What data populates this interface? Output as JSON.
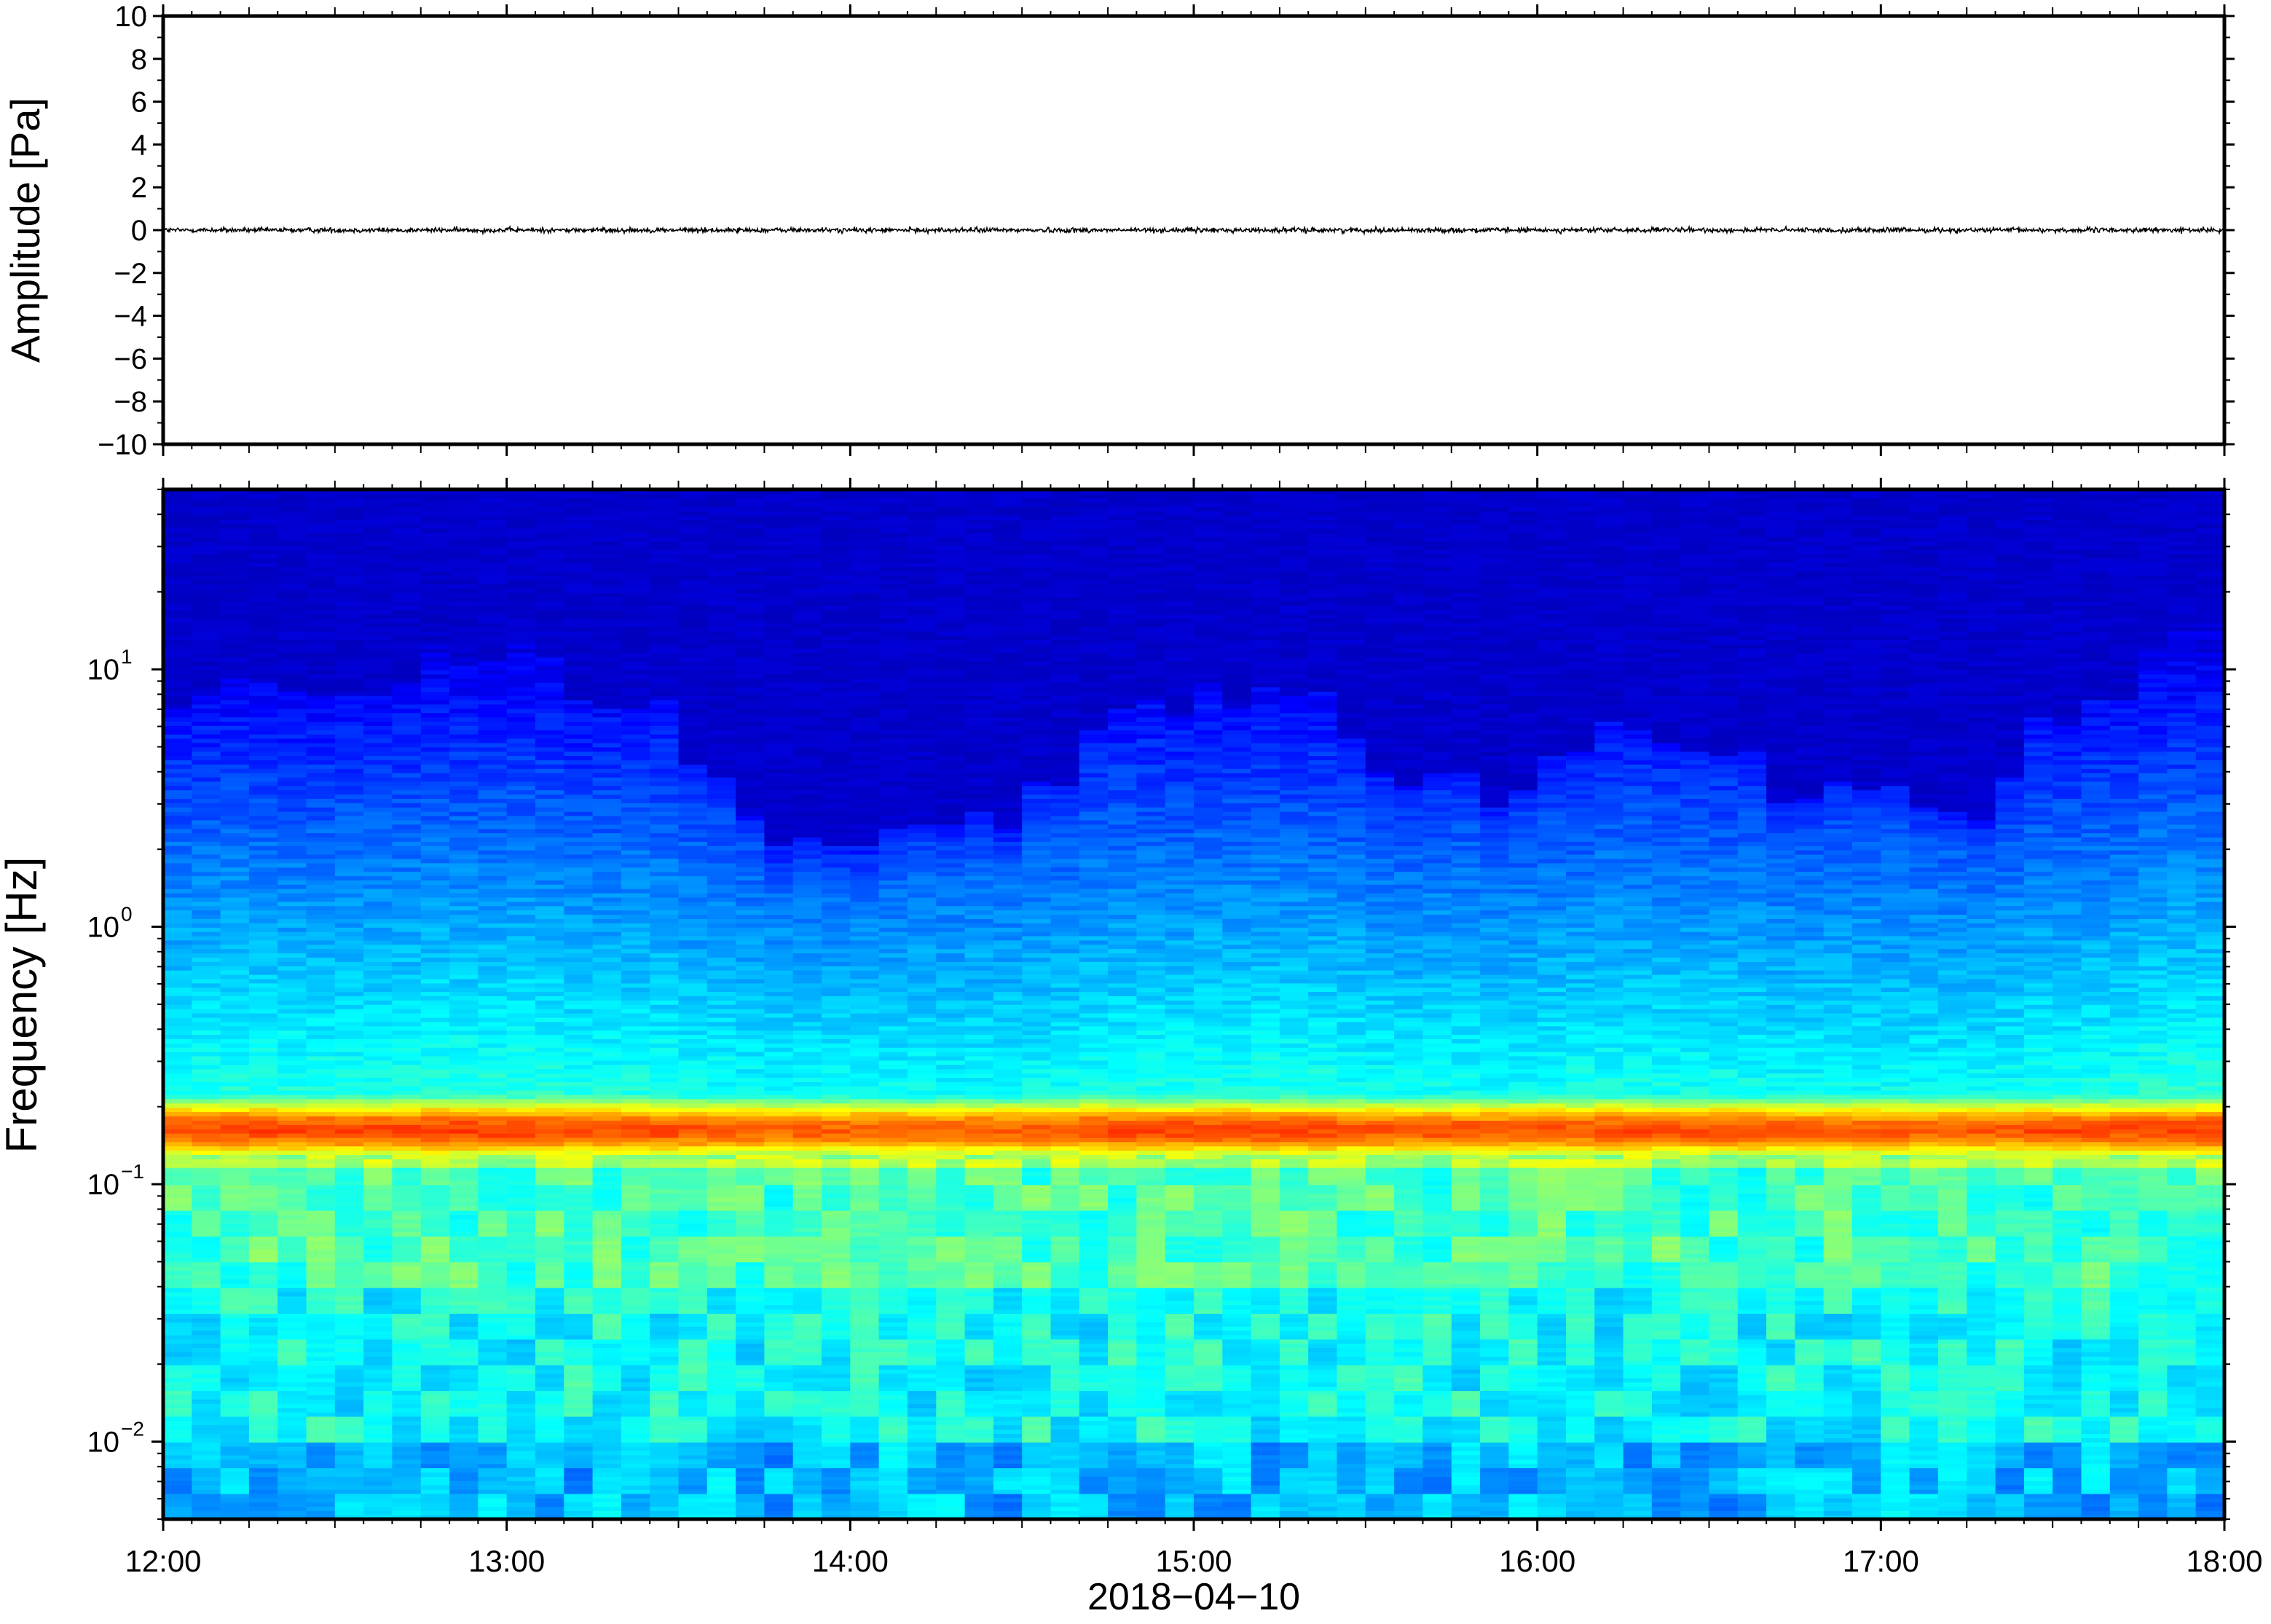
{
  "chart_data": [
    {
      "type": "line",
      "panel": "waveform",
      "ylabel": "Amplitude [Pa]",
      "ylim": [
        -10,
        10
      ],
      "yticks": [
        10,
        8,
        6,
        4,
        2,
        0,
        -2,
        -4,
        -6,
        -8,
        -10
      ],
      "ytick_labels": [
        "10",
        "8",
        "6",
        "4",
        "2",
        "0",
        "−2",
        "−4",
        "−6",
        "−8",
        "−10"
      ],
      "x_range": [
        "12:00",
        "18:00"
      ],
      "series": [
        {
          "signal": "noise around zero",
          "mean": 0.0,
          "typical_amplitude": 0.2,
          "color": "#000000"
        }
      ]
    },
    {
      "type": "heatmap",
      "panel": "spectrogram",
      "ylabel": "Frequency [Hz]",
      "yscale": "log",
      "ylim": [
        0.005,
        50
      ],
      "yticks": [
        0.01,
        0.1,
        1,
        10
      ],
      "ytick_labels": [
        {
          "base": "10",
          "exp": "−2"
        },
        {
          "base": "10",
          "exp": "−1"
        },
        {
          "base": "10",
          "exp": "0"
        },
        {
          "base": "10",
          "exp": "1"
        }
      ],
      "xlabel": "2018−04−10",
      "x_range": [
        "12:00",
        "18:00"
      ],
      "xtick_labels": [
        "12:00",
        "13:00",
        "14:00",
        "15:00",
        "16:00",
        "17:00",
        "18:00"
      ],
      "colormap": "jet",
      "features": {
        "dominant_band_hz": [
          0.13,
          0.22
        ],
        "dominant_band_peak_hz": 0.16,
        "upper_energy_limit_hz_range": [
          2,
          15
        ],
        "column_count": 72
      }
    }
  ]
}
